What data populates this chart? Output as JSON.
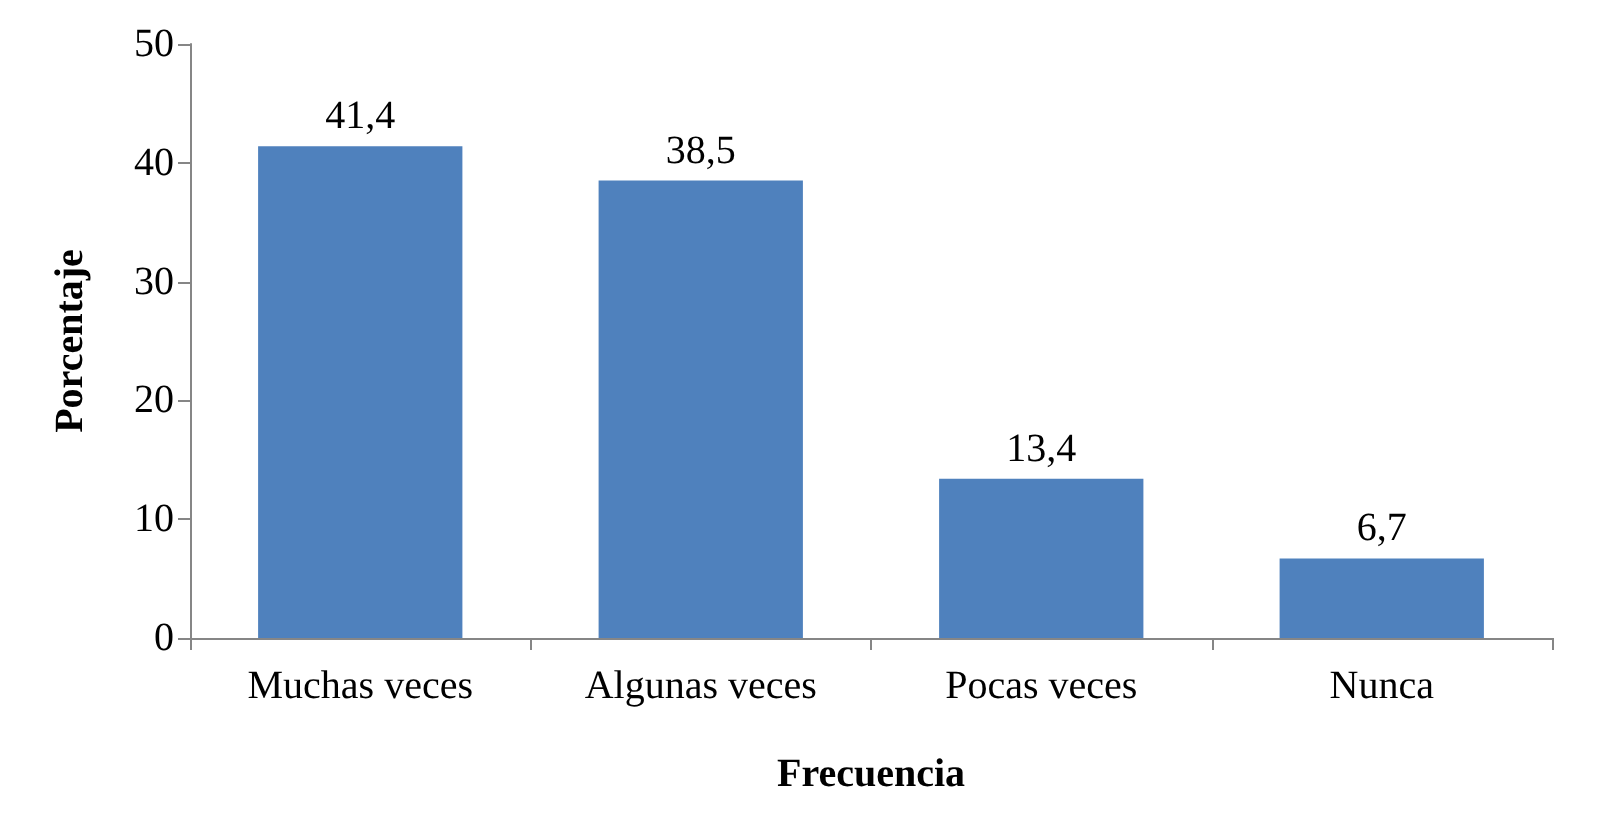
{
  "chart_data": {
    "type": "bar",
    "xlabel": "Frecuencia",
    "ylabel": "Porcentaje",
    "categories": [
      "Muchas veces",
      "Algunas veces",
      "Pocas veces",
      "Nunca"
    ],
    "values": [
      41.4,
      38.5,
      13.4,
      6.7
    ],
    "color": "#4f81bd",
    "value_labels": [
      "41,4",
      "38,5",
      "13,4",
      "6,7"
    ],
    "ylim": [
      0,
      50
    ],
    "yticks": [
      0,
      10,
      20,
      30,
      40,
      50
    ],
    "grid": false
  }
}
